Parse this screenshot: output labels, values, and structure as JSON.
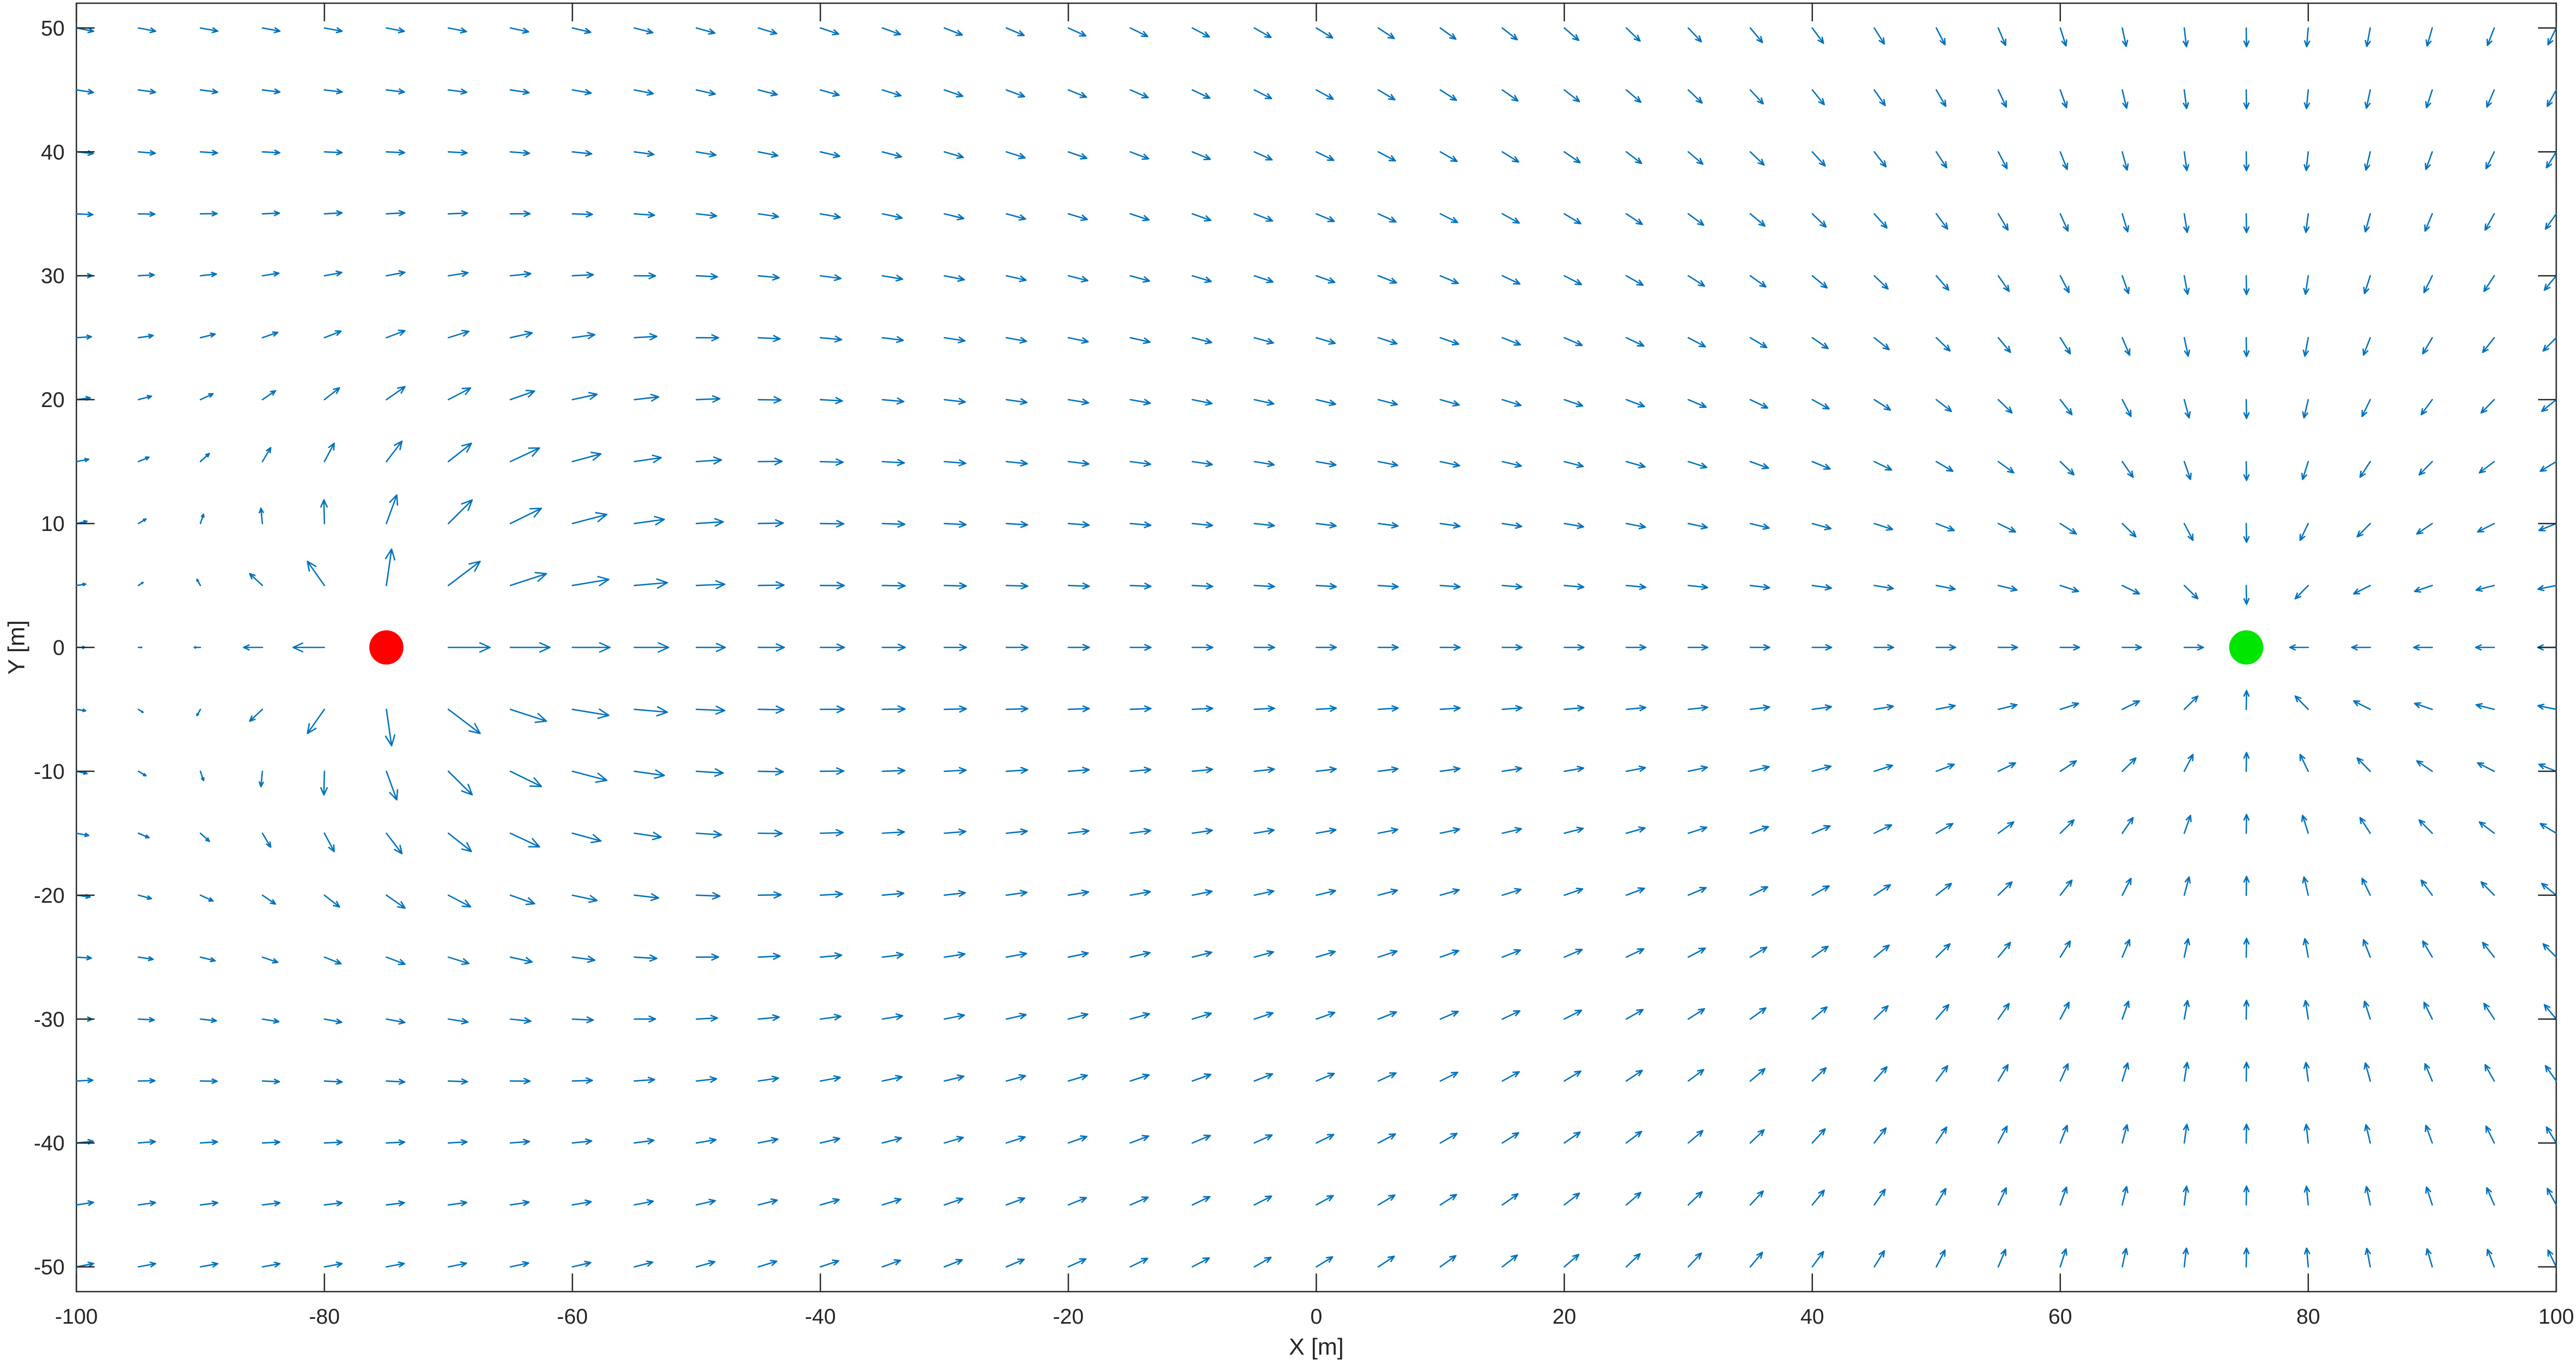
{
  "chart_data": {
    "type": "quiver",
    "xlabel": "X [m]",
    "ylabel": "Y [m]",
    "xlim": [
      -100,
      100
    ],
    "ylim": [
      -52,
      52
    ],
    "xticks": [
      -100,
      -80,
      -60,
      -40,
      -20,
      0,
      20,
      40,
      60,
      80,
      100
    ],
    "yticks": [
      -50,
      -40,
      -30,
      -20,
      -10,
      0,
      10,
      20,
      30,
      40,
      50
    ],
    "grid": false,
    "box": true,
    "field": {
      "x_range": [
        -100,
        100
      ],
      "y_range": [
        -50,
        50
      ],
      "step": 5,
      "arrow_color": "#0072bd",
      "description_type": "attractive potential toward goal plus repulsive field around obstacle"
    },
    "markers": [
      {
        "name": "obstacle",
        "x": -75,
        "y": 0,
        "color": "#ff0000"
      },
      {
        "name": "goal",
        "x": 75,
        "y": 0,
        "color": "#00e600"
      }
    ],
    "colors": {
      "axis": "#262626",
      "background": "#ffffff"
    }
  }
}
